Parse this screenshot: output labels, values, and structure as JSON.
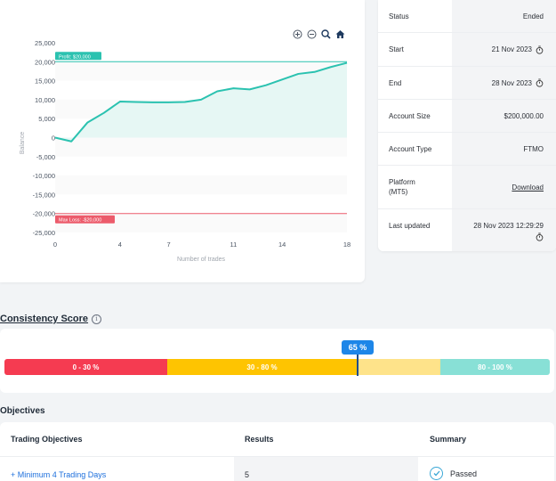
{
  "chart_data": {
    "type": "line",
    "x": [
      0,
      1,
      2,
      3,
      4,
      5,
      6,
      7,
      8,
      9,
      10,
      11,
      12,
      13,
      14,
      15,
      16,
      17,
      18
    ],
    "values": [
      0,
      -1000,
      4000,
      6500,
      9500,
      9400,
      9300,
      9300,
      9400,
      10000,
      12200,
      13000,
      12700,
      13800,
      15300,
      16800,
      17300,
      18600,
      19700
    ],
    "xlabel": "Number of trades",
    "ylabel": "Balance",
    "xticks": [
      0,
      4,
      7,
      11,
      14,
      18
    ],
    "yticks": [
      25000,
      20000,
      15000,
      10000,
      5000,
      0,
      -5000,
      -10000,
      -15000,
      -20000,
      -25000
    ],
    "ytick_labels": [
      "25,000",
      "20,000",
      "15,000",
      "10,000",
      "5,000",
      "0",
      "-5,000",
      "-10,000",
      "-15,000",
      "-20,000",
      "-25,000"
    ],
    "xlim": [
      0,
      18
    ],
    "ylim": [
      -25000,
      25000
    ],
    "profit_target": 20000,
    "max_loss": -20000,
    "profit_label": "Profit: $20,000",
    "loss_label": "Max Loss: -$20,000",
    "line_color": "#2bc2b0",
    "profit_color": "#2bc2b0",
    "loss_color": "#ec5b6b"
  },
  "chart_tools": [
    "zoom-in-icon",
    "zoom-out-icon",
    "magnifier-icon",
    "home-icon"
  ],
  "info": {
    "status_label": "Status",
    "status_value": "Ended",
    "start_label": "Start",
    "start_value": "21 Nov 2023",
    "end_label": "End",
    "end_value": "28 Nov 2023",
    "size_label": "Account Size",
    "size_value": "$200,000.00",
    "type_label": "Account Type",
    "type_value": "FTMO",
    "platform_label": "Platform (MT5)",
    "platform_value": "Download",
    "updated_label": "Last updated",
    "updated_value": "28 Nov 2023 12:29:29"
  },
  "consistency": {
    "title": "Consistency Score",
    "info_glyph": "i",
    "score": "65 %",
    "score_fraction": 0.65,
    "segments": [
      "0 - 30 %",
      "30 - 80 %",
      "",
      "80 - 100 %"
    ]
  },
  "objectives": {
    "title": "Objectives",
    "col_objectives": "Trading Objectives",
    "col_results": "Results",
    "col_summary": "Summary",
    "rows": [
      {
        "objective": "+ Minimum 4 Trading Days",
        "result": "5",
        "summary": "Passed"
      }
    ]
  },
  "colors": {
    "red": "#f53b51",
    "yellow": "#fec401",
    "light_yellow": "#fee38a",
    "teal": "#88e0d6",
    "accent": "#1d86e8"
  }
}
